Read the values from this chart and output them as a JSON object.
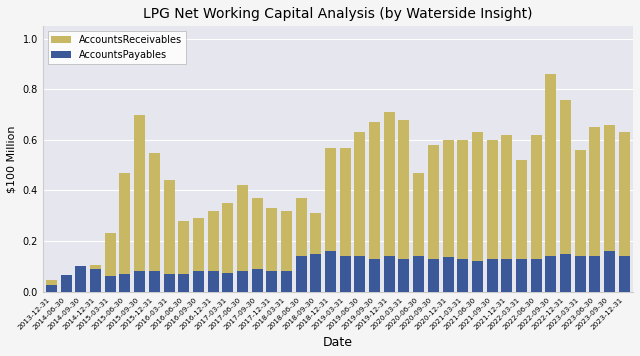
{
  "title": "LPG Net Working Capital Analysis (by Waterside Insight)",
  "xlabel": "Date",
  "ylabel": "$100 Million",
  "dates": [
    "2013-12-31",
    "2014-06-30",
    "2014-09-30",
    "2014-12-31",
    "2015-03-31",
    "2015-06-30",
    "2015-09-30",
    "2015-12-31",
    "2016-03-31",
    "2016-06-30",
    "2016-09-30",
    "2016-12-31",
    "2017-03-31",
    "2017-06-30",
    "2017-09-30",
    "2017-12-31",
    "2018-03-31",
    "2018-06-30",
    "2018-09-30",
    "2018-12-31",
    "2019-03-31",
    "2019-06-30",
    "2019-09-30",
    "2019-12-31",
    "2020-03-31",
    "2020-06-30",
    "2020-09-30",
    "2020-12-31",
    "2021-03-31",
    "2021-06-30",
    "2021-09-30",
    "2021-12-31",
    "2022-03-31",
    "2022-06-30",
    "2022-09-30",
    "2022-12-31",
    "2023-03-31",
    "2023-06-30",
    "2023-09-30",
    "2023-12-31"
  ],
  "accounts_receivables": [
    4500000,
    6500000,
    9500000,
    10500000,
    23000000,
    47000000,
    70000000,
    55000000,
    44000000,
    28000000,
    29000000,
    32000000,
    35000000,
    42000000,
    37000000,
    33000000,
    32000000,
    37000000,
    31000000,
    57000000,
    57000000,
    63000000,
    67000000,
    71000000,
    68000000,
    47000000,
    58000000,
    60000000,
    60000000,
    63000000,
    60000000,
    62000000,
    52000000,
    62000000,
    86000000,
    76000000,
    56000000,
    65000000,
    66000000,
    63000000
  ],
  "accounts_payables": [
    2500000,
    6500000,
    10000000,
    9000000,
    6000000,
    7000000,
    8000000,
    8000000,
    7000000,
    7000000,
    8000000,
    8000000,
    7500000,
    8000000,
    9000000,
    8000000,
    8000000,
    14000000,
    15000000,
    16000000,
    14000000,
    14000000,
    13000000,
    14000000,
    13000000,
    14000000,
    13000000,
    13500000,
    13000000,
    12000000,
    13000000,
    13000000,
    13000000,
    13000000,
    14000000,
    15000000,
    14000000,
    14000000,
    16000000,
    14000000
  ],
  "ar_color": "#C8B864",
  "ap_color": "#3B5998",
  "background_color": "#E6E6EF",
  "fig_background": "#F5F5F5",
  "ylim": [
    0,
    105000000.0
  ],
  "yticks": [
    0.0,
    0.2,
    0.4,
    0.6,
    0.8,
    1.0
  ],
  "legend_labels": [
    "AccountsReceivables",
    "AccountsPayables"
  ]
}
